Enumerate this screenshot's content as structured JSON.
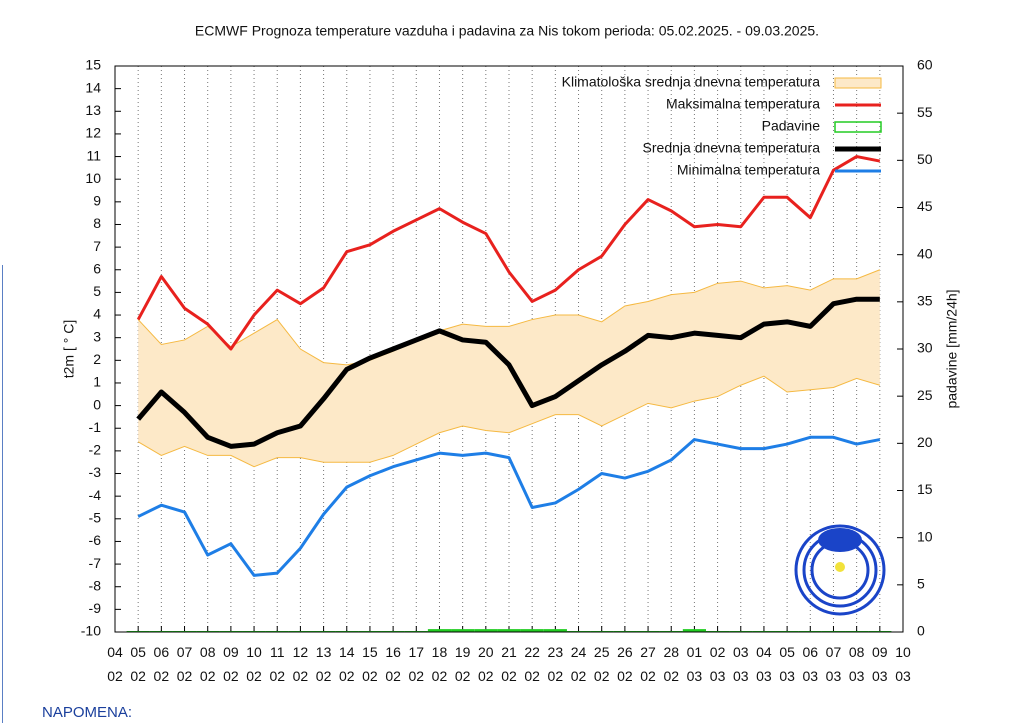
{
  "chart_data": {
    "type": "line",
    "title": "ECMWF Prognoza temperature vazduha i padavina za Nis tokom perioda: 05.02.2025. - 09.03.2025.",
    "y_label": "t2m [ ° C]",
    "y2_label": "padavine [mm/24h]",
    "categories": [
      "04 02",
      "05 02",
      "06 02",
      "07 02",
      "08 02",
      "09 02",
      "10 02",
      "11 02",
      "12 02",
      "13 02",
      "14 02",
      "15 02",
      "16 02",
      "17 02",
      "18 02",
      "19 02",
      "20 02",
      "21 02",
      "22 02",
      "23 02",
      "24 02",
      "25 02",
      "26 02",
      "27 02",
      "28 02",
      "01 03",
      "02 03",
      "03 03",
      "04 03",
      "05 03",
      "06 03",
      "07 03",
      "08 03",
      "09 03",
      "10 03"
    ],
    "ylim": [
      -10,
      15
    ],
    "yticks": [
      -10,
      -9,
      -8,
      -7,
      -6,
      -5,
      -4,
      -3,
      -2,
      -1,
      0,
      1,
      2,
      3,
      4,
      5,
      6,
      7,
      8,
      9,
      10,
      11,
      12,
      13,
      14,
      15
    ],
    "y2lim": [
      0,
      60
    ],
    "y2ticks": [
      0,
      5,
      10,
      15,
      20,
      25,
      30,
      35,
      40,
      45,
      50,
      55,
      60
    ],
    "grid": true,
    "series": [
      {
        "name": "Klimatološka srednja dnevna temperatura",
        "type": "band",
        "color": "#f5b942",
        "fill": "#fde9c8",
        "upper": [
          null,
          3.8,
          2.7,
          2.9,
          3.5,
          2.6,
          3.2,
          3.8,
          2.5,
          1.9,
          1.8,
          2.0,
          2.4,
          2.9,
          3.3,
          3.6,
          3.5,
          3.5,
          3.8,
          4.0,
          4.0,
          3.7,
          4.4,
          4.6,
          4.9,
          5.0,
          5.4,
          5.5,
          5.2,
          5.3,
          5.1,
          5.6,
          5.6,
          6.0,
          null
        ],
        "lower": [
          null,
          -1.6,
          -2.2,
          -1.8,
          -2.2,
          -2.2,
          -2.7,
          -2.3,
          -2.3,
          -2.5,
          -2.5,
          -2.5,
          -2.2,
          -1.7,
          -1.2,
          -0.9,
          -1.1,
          -1.2,
          -0.8,
          -0.4,
          -0.4,
          -0.9,
          -0.4,
          0.1,
          -0.1,
          0.2,
          0.4,
          0.9,
          1.3,
          0.6,
          0.7,
          0.8,
          1.2,
          0.9,
          null
        ]
      },
      {
        "name": "Maksimalna temperatura",
        "type": "line",
        "color": "#e8211e",
        "width": 3,
        "values": [
          null,
          3.8,
          5.7,
          4.3,
          3.6,
          2.5,
          4.0,
          5.1,
          4.5,
          5.2,
          6.8,
          7.1,
          7.7,
          8.2,
          8.7,
          8.1,
          7.6,
          5.9,
          4.6,
          5.1,
          6.0,
          6.6,
          8.0,
          9.1,
          8.6,
          7.9,
          8.0,
          7.9,
          9.2,
          9.2,
          8.3,
          10.4,
          11.0,
          10.8,
          null
        ]
      },
      {
        "name": "Padavine",
        "type": "bar",
        "axis": "y2",
        "color": "#22cc22",
        "values": [
          null,
          0,
          0,
          0,
          0,
          0,
          0,
          0,
          0,
          0,
          0,
          0,
          0,
          0,
          0.2,
          0.2,
          0.2,
          0.2,
          0.2,
          0.2,
          0,
          0,
          0,
          0,
          0,
          0.2,
          0,
          0,
          0,
          0,
          0,
          0,
          0,
          0,
          null
        ]
      },
      {
        "name": "Srednja dnevna temperatura",
        "type": "line",
        "color": "#000000",
        "width": 5,
        "values": [
          null,
          -0.6,
          0.6,
          -0.3,
          -1.4,
          -1.8,
          -1.7,
          -1.2,
          -0.9,
          0.3,
          1.6,
          2.1,
          2.5,
          2.9,
          3.3,
          2.9,
          2.8,
          1.8,
          0.0,
          0.4,
          1.1,
          1.8,
          2.4,
          3.1,
          3.0,
          3.2,
          3.1,
          3.0,
          3.6,
          3.7,
          3.5,
          4.5,
          4.7,
          4.7,
          null
        ]
      },
      {
        "name": "Minimalna temperatura",
        "type": "line",
        "color": "#1e7ee6",
        "width": 3,
        "values": [
          null,
          -4.9,
          -4.4,
          -4.7,
          -6.6,
          -6.1,
          -7.5,
          -7.4,
          -6.3,
          -4.8,
          -3.6,
          -3.1,
          -2.7,
          -2.4,
          -2.1,
          -2.2,
          -2.1,
          -2.3,
          -4.5,
          -4.3,
          -3.7,
          -3.0,
          -3.2,
          -2.9,
          -2.4,
          -1.5,
          -1.7,
          -1.9,
          -1.9,
          -1.7,
          -1.4,
          -1.4,
          -1.7,
          -1.5,
          null
        ]
      }
    ]
  },
  "note": "NAPOMENA:"
}
